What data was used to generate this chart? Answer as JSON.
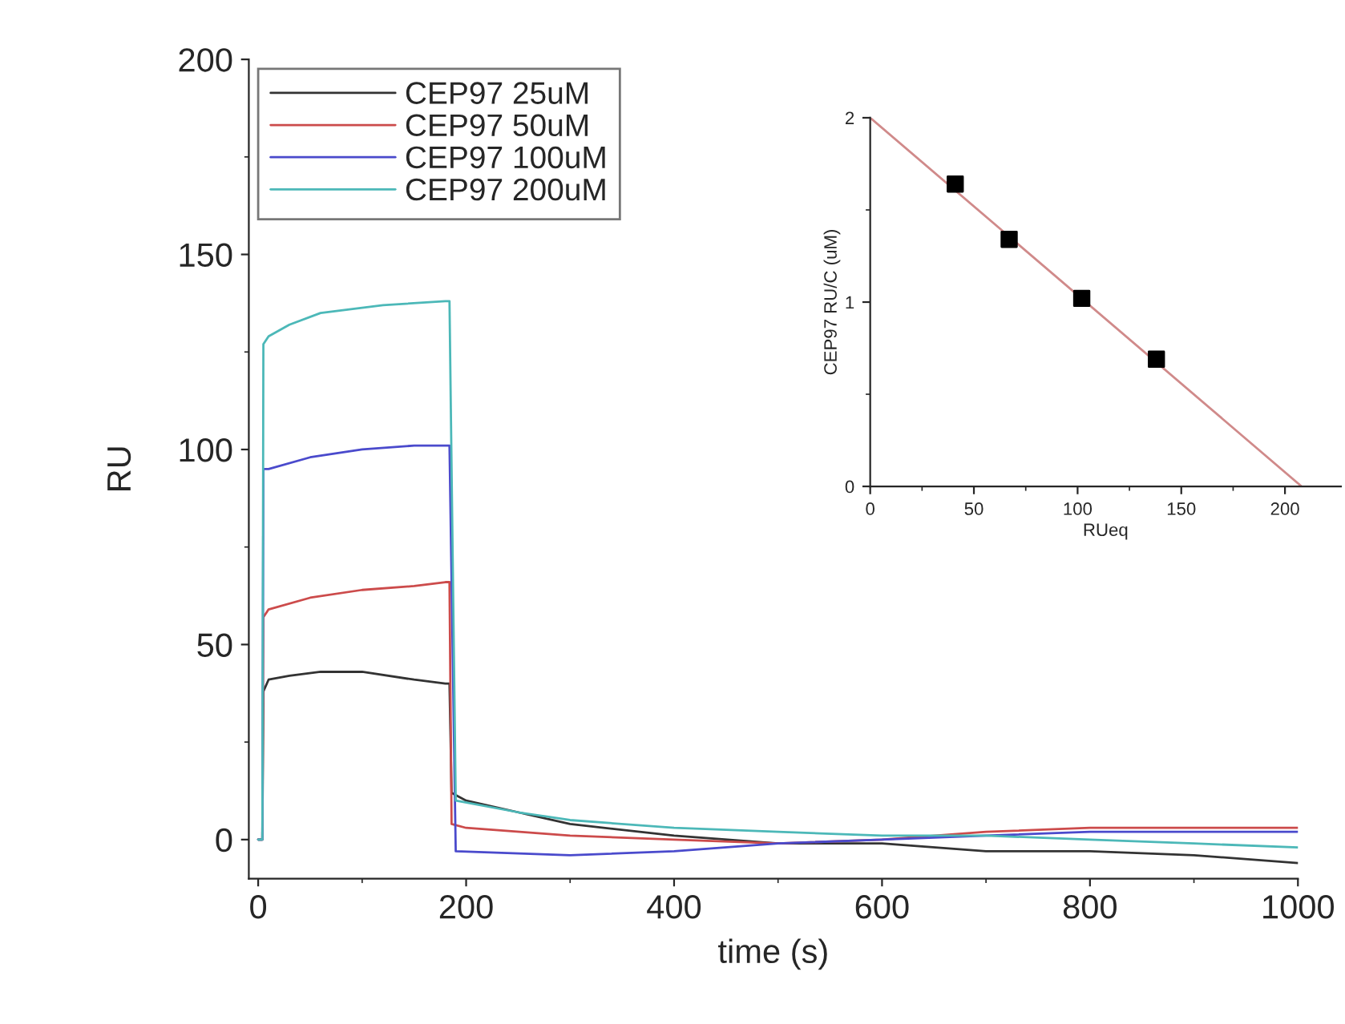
{
  "chart_data": [
    {
      "type": "line",
      "xlabel": "time (s)",
      "ylabel": "RU",
      "xlim": [
        -9,
        1000
      ],
      "ylim": [
        -10,
        200
      ],
      "xticks": [
        0,
        200,
        400,
        600,
        800,
        1000
      ],
      "yticks": [
        0,
        50,
        100,
        150,
        200
      ],
      "legend": "top left",
      "grid": false,
      "marker": "none",
      "line_style": "solid",
      "series": [
        {
          "name": "CEP97 25uM",
          "color": "#333333",
          "x": [
            0,
            4,
            5,
            10,
            30,
            60,
            100,
            150,
            180,
            184,
            186,
            200,
            250,
            300,
            400,
            500,
            600,
            700,
            800,
            900,
            1000
          ],
          "values": [
            0,
            0,
            38,
            41,
            42,
            43,
            43,
            41,
            40,
            40,
            12,
            10,
            7,
            4,
            1,
            -1,
            -1,
            -3,
            -3,
            -4,
            -6
          ]
        },
        {
          "name": "CEP97 50uM",
          "color": "#cc4b4b",
          "x": [
            0,
            4,
            5,
            10,
            50,
            100,
            150,
            180,
            184,
            186,
            200,
            300,
            400,
            500,
            600,
            700,
            800,
            900,
            1000
          ],
          "values": [
            0,
            0,
            57,
            59,
            62,
            64,
            65,
            66,
            66,
            4,
            3,
            1,
            0,
            -1,
            0,
            2,
            3,
            3,
            3
          ]
        },
        {
          "name": "CEP97 100uM",
          "color": "#4a4acc",
          "x": [
            0,
            4,
            5,
            10,
            50,
            100,
            150,
            180,
            184,
            190,
            300,
            400,
            500,
            600,
            700,
            800,
            900,
            1000
          ],
          "values": [
            0,
            0,
            95,
            95,
            98,
            100,
            101,
            101,
            101,
            -3,
            -4,
            -3,
            -1,
            0,
            1,
            2,
            2,
            2
          ]
        },
        {
          "name": "CEP97 200uM",
          "color": "#4cb8b8",
          "x": [
            0,
            4,
            5,
            10,
            30,
            60,
            120,
            180,
            184,
            190,
            250,
            300,
            400,
            500,
            600,
            700,
            800,
            900,
            1000
          ],
          "values": [
            0,
            0,
            127,
            129,
            132,
            135,
            137,
            138,
            138,
            10,
            7,
            5,
            3,
            2,
            1,
            1,
            0,
            -1,
            -2
          ]
        }
      ]
    },
    {
      "type": "scatter",
      "xlabel": "RUeq",
      "ylabel": "CEP97 RU/C (uM)",
      "xlim": [
        0,
        227
      ],
      "ylim": [
        0,
        2
      ],
      "xticks": [
        0,
        50,
        100,
        150,
        200
      ],
      "yticks": [
        0,
        1,
        2
      ],
      "legend": false,
      "grid": false,
      "series": [
        {
          "color": "#000000",
          "marker": "square",
          "x": [
            41,
            67,
            102,
            138
          ],
          "values": [
            1.64,
            1.34,
            1.02,
            0.69
          ]
        },
        {
          "color": "#d08a8a",
          "type": "line",
          "marker": "none",
          "x": [
            0,
            208
          ],
          "values": [
            2,
            0
          ]
        }
      ]
    }
  ]
}
